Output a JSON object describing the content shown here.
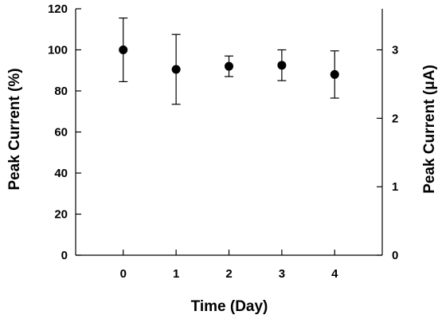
{
  "chart_data": {
    "type": "scatter",
    "title": "",
    "xlabel": "Time (Day)",
    "ylabel": "Peak Current (%)",
    "ylabel_right": "Peak Current (μA)",
    "x": [
      0,
      1,
      2,
      3,
      4
    ],
    "xlim": [
      -0.9,
      4.9
    ],
    "ylim": [
      0,
      120
    ],
    "ylim_right": [
      0,
      3.6
    ],
    "x_ticks": [
      0,
      1,
      2,
      3,
      4
    ],
    "y_ticks": [
      0,
      20,
      40,
      60,
      80,
      100,
      120
    ],
    "y_ticks_right": [
      0,
      1,
      2,
      3
    ],
    "series": [
      {
        "values": [
          100,
          90.5,
          92,
          92.5,
          88
        ],
        "error_low": [
          84.5,
          73.5,
          87,
          85,
          76.5
        ],
        "error_high": [
          115.5,
          107.5,
          97,
          100,
          99.5
        ]
      }
    ],
    "grid": false,
    "legend": "none",
    "marker_color": "#000000"
  }
}
